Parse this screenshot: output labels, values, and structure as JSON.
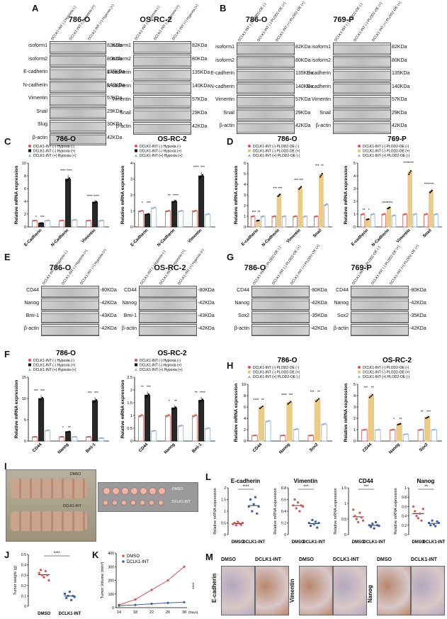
{
  "panels": {
    "A": {
      "label": "A",
      "cells": [
        "786-O",
        "OS-RC-2"
      ],
      "lanes": [
        "DCLK1-INT (-) Hypoxia (-)",
        "DCLK1-INT (-) Hypoxia (+)",
        "DCLK1-INT (+) Hypoxia (+)"
      ],
      "rows_left": [
        {
          "name": "isoform1",
          "kda": "82KDa"
        },
        {
          "name": "isoform2",
          "kda": "80KDa"
        },
        {
          "name": "E-cadherin",
          "kda": "135KDa"
        },
        {
          "name": "N-cadherin",
          "kda": "140KDa"
        },
        {
          "name": "Vimentin",
          "kda": "57KDa"
        },
        {
          "name": "Snail",
          "kda": "29KDa"
        },
        {
          "name": "Slug",
          "kda": "30KDa"
        },
        {
          "name": "β-actin",
          "kda": "42KDa"
        }
      ],
      "rows_right": [
        {
          "name": "isoform1",
          "kda": "82KDa"
        },
        {
          "name": "isoform2",
          "kda": "80KDa"
        },
        {
          "name": "E-cadherin",
          "kda": "135KDa"
        },
        {
          "name": "N-cadherin",
          "kda": "140KDa"
        },
        {
          "name": "Vimentin",
          "kda": "57KDa"
        },
        {
          "name": "Snail",
          "kda": "29KDa"
        },
        {
          "name": "β-actin",
          "kda": "42KDa"
        }
      ]
    },
    "B": {
      "label": "B",
      "cells": [
        "786-O",
        "769-P"
      ],
      "lanes": [
        "DCLK1-INT (-) PLOD2-OE (-)",
        "DCLK1-INT (-) PLOD2-OE (+)",
        "DCLK1-INT (+) PLOD2-OE (+)"
      ],
      "rows": [
        {
          "name": "isoform1",
          "kda": "82KDa"
        },
        {
          "name": "isoform2",
          "kda": "80KDa"
        },
        {
          "name": "E-cadherin",
          "kda": "135KDa"
        },
        {
          "name": "N-cadherin",
          "kda": "140KDa"
        },
        {
          "name": "Vimentin",
          "kda": "57KDa"
        },
        {
          "name": "Snail",
          "kda": "29KDa"
        },
        {
          "name": "β-actin",
          "kda": "42KDa"
        }
      ]
    },
    "C": {
      "label": "C"
    },
    "D": {
      "label": "D"
    },
    "E": {
      "label": "E",
      "cells": [
        "786-O",
        "OS-RC-2"
      ],
      "lanes": [
        "DCLK1-INT (-) Hypoxia (-)",
        "DCLK1-INT (-) Hypoxia (+)",
        "DCLK1-INT (+) Hypoxia (+)"
      ],
      "rows": [
        {
          "name": "CD44",
          "kda": "-80KDa"
        },
        {
          "name": "Nanog",
          "kda": "-42KDa"
        },
        {
          "name": "Bmi-1",
          "kda": "-43KDa"
        },
        {
          "name": "β-actin",
          "kda": "-42KDa"
        }
      ]
    },
    "G": {
      "label": "G",
      "cells": [
        "786-O",
        "769-P"
      ],
      "lanes": [
        "DCLK1-INT (-) PLOD2-OE (-)",
        "DCLK1-INT (-) PLOD2-OE (+)",
        "DCLK1-INT (+) PLOD2-OE (+)"
      ],
      "rows": [
        {
          "name": "CD44",
          "kda": "-80KDa"
        },
        {
          "name": "Nanog",
          "kda": "-42KDa"
        },
        {
          "name": "Sox2",
          "kda": "-35KDa"
        },
        {
          "name": "β-actin",
          "kda": "-42KDa"
        }
      ]
    },
    "F": {
      "label": "F"
    },
    "H": {
      "label": "H"
    },
    "I": {
      "label": "I",
      "tags": [
        "DMSO",
        "DCLK1-INT",
        "DMSO",
        "DCLK1-INT"
      ]
    },
    "L": {
      "label": "L"
    },
    "J": {
      "label": "J"
    },
    "K": {
      "label": "K"
    },
    "M": {
      "label": "M",
      "headers": [
        "DMSO",
        "DCLK1-INT"
      ],
      "markers": [
        "E-cadherin",
        "Vimentin",
        "Nanog"
      ]
    }
  },
  "chart_data": [
    {
      "id": "C1",
      "type": "bar",
      "title": "786-O",
      "ylabel": "Relative mRNA expression",
      "ylim": [
        0,
        10
      ],
      "yticks": [
        0,
        2,
        4,
        6,
        8,
        10
      ],
      "categories": [
        "E-Cadherin",
        "N-Cadherin",
        "Vimentin"
      ],
      "legend": [
        "DCLK1-INT (-) Hypoxia (-)",
        "DCLK1-INT (-) Hypoxia (+)",
        "DCLK1-INT (+) Hypoxia (+)"
      ],
      "series": [
        {
          "name": "DCLK1-INT (-) Hypoxia (-)",
          "values": [
            1.0,
            1.0,
            1.0
          ]
        },
        {
          "name": "DCLK1-INT (-) Hypoxia (+)",
          "values": [
            0.6,
            7.5,
            3.9
          ]
        },
        {
          "name": "DCLK1-INT (+) Hypoxia (+)",
          "values": [
            1.0,
            1.1,
            1.0
          ]
        }
      ],
      "sig": [
        "*",
        "***",
        "****",
        "****",
        "****",
        "****"
      ]
    },
    {
      "id": "C2",
      "type": "bar",
      "title": "OS-RC-2",
      "ylabel": "Relative mRNA expression",
      "ylim": [
        0,
        4
      ],
      "yticks": [
        0,
        1,
        2,
        3,
        4
      ],
      "categories": [
        "E-Cadherin",
        "N-Cadherin",
        "Vimentin"
      ],
      "legend": [
        "DCLK1-INT (-) Hypoxia (-)",
        "DCLK1-INT (-) Hypoxia (+)",
        "DCLK1-INT (+) Hypoxia (+)"
      ],
      "series": [
        {
          "name": "DCLK1-INT (-) Hypoxia (-)",
          "values": [
            1.0,
            1.0,
            1.0
          ]
        },
        {
          "name": "DCLK1-INT (-) Hypoxia (+)",
          "values": [
            0.8,
            1.6,
            3.2
          ]
        },
        {
          "name": "DCLK1-INT (+) Hypoxia (+)",
          "values": [
            1.2,
            1.0,
            0.8
          ]
        }
      ],
      "sig": [
        "*",
        "***",
        "**",
        "****",
        "****",
        "***"
      ]
    },
    {
      "id": "D1",
      "type": "bar",
      "title": "786-O",
      "ylabel": "Relative mRNA expression",
      "ylim": [
        0,
        6
      ],
      "yticks": [
        0,
        1,
        2,
        3,
        4,
        5,
        6
      ],
      "categories": [
        "E-cadherin",
        "N-Cadherin",
        "Vimentin",
        "Snail"
      ],
      "legend": [
        "DCLK1-INT (-) PLOD2-OE (-)",
        "DCLK1-INT (-) PLOD2-OE (+)",
        "DCLK1-INT (+) PLOD2-OE (-)"
      ],
      "series": [
        {
          "name": "DCLK1-INT (-) PLOD2-OE (-)",
          "values": [
            1.0,
            1.0,
            1.0,
            1.0
          ]
        },
        {
          "name": "DCLK1-INT (-) PLOD2-OE (+)",
          "values": [
            0.6,
            3.0,
            3.7,
            4.9
          ]
        },
        {
          "name": "DCLK1-INT (+) PLOD2-OE (-)",
          "values": [
            1.0,
            1.0,
            1.0,
            2.1
          ]
        }
      ],
      "sig": [
        "***",
        "**",
        "***",
        "***",
        "***",
        "***",
        "***",
        "**"
      ]
    },
    {
      "id": "D2",
      "type": "bar",
      "title": "769-P",
      "ylabel": "Relative mRNA expression",
      "ylim": [
        0,
        5
      ],
      "yticks": [
        0,
        1,
        2,
        3,
        4,
        5
      ],
      "categories": [
        "E-cadherin",
        "N-Cadherin",
        "Vimentin",
        "Snail"
      ],
      "legend": [
        "DCLK1-INT (-) PLOD2-OE (-)",
        "DCLK1-INT (-) PLOD2-OE (+)",
        "DCLK1-INT (+) PLOD2-OE (-)"
      ],
      "series": [
        {
          "name": "DCLK1-INT (-) PLOD2-OE (-)",
          "values": [
            1.0,
            1.0,
            1.0,
            1.0
          ]
        },
        {
          "name": "DCLK1-INT (-) PLOD2-OE (+)",
          "values": [
            0.6,
            1.5,
            4.3,
            2.8
          ]
        },
        {
          "name": "DCLK1-INT (+) PLOD2-OE (-)",
          "values": [
            1.0,
            0.9,
            1.0,
            1.0
          ]
        }
      ],
      "sig": [
        "**",
        "*",
        "****",
        "****",
        "****",
        "****",
        "****",
        "***"
      ]
    },
    {
      "id": "F1",
      "type": "bar",
      "title": "786-O",
      "ylabel": "Relative mRNA expression",
      "ylim": [
        0,
        15
      ],
      "yticks": [
        0,
        5,
        10,
        15
      ],
      "categories": [
        "CD44",
        "Nanog",
        "Bmi-1"
      ],
      "legend": [
        "DCLK1-INT (-) Hypoxia (-)",
        "DCLK1-INT (-) Hypoxia (+)",
        "DCLK1-INT (+) Hypoxia (+)"
      ],
      "series": [
        {
          "name": "DCLK1-INT (-) Hypoxia (-)",
          "values": [
            1.0,
            1.0,
            1.0
          ]
        },
        {
          "name": "DCLK1-INT (-) Hypoxia (+)",
          "values": [
            10.0,
            2.2,
            9.5
          ]
        },
        {
          "name": "DCLK1-INT (+) Hypoxia (+)",
          "values": [
            2.5,
            1.0,
            0.7
          ]
        }
      ],
      "sig": [
        "***",
        "***",
        "*",
        "**",
        "***",
        "***"
      ]
    },
    {
      "id": "F2",
      "type": "bar",
      "title": "OS-RC-2",
      "ylabel": "Relative mRNA expression",
      "ylim": [
        0,
        2.5
      ],
      "yticks": [
        0.0,
        0.5,
        1.0,
        1.5,
        2.0,
        2.5
      ],
      "categories": [
        "CD44",
        "Nanog",
        "Bmi-1"
      ],
      "legend": [
        "DCLK1-INT (-) Hypoxia (-)",
        "DCLK1-INT (-) Hypoxia (+)",
        "DCLK1-INT (+) Hypoxia (+)"
      ],
      "series": [
        {
          "name": "DCLK1-INT (-) Hypoxia (-)",
          "values": [
            1.0,
            1.0,
            1.0
          ]
        },
        {
          "name": "DCLK1-INT (-) Hypoxia (+)",
          "values": [
            1.8,
            1.3,
            1.6
          ]
        },
        {
          "name": "DCLK1-INT (+) Hypoxia (+)",
          "values": [
            0.4,
            0.6,
            0.5
          ]
        }
      ],
      "sig": [
        "**",
        "***",
        "*",
        "**",
        "**",
        "****"
      ]
    },
    {
      "id": "H1",
      "type": "bar",
      "title": "786-O",
      "ylabel": "Relative mRNA expression",
      "ylim": [
        0,
        10
      ],
      "yticks": [
        0,
        2,
        4,
        6,
        8,
        10
      ],
      "categories": [
        "CD44",
        "Nanog",
        "Sox2"
      ],
      "legend": [
        "DCLK1-INT (-) PLOD2-OE (-)",
        "DCLK1-INT (-) PLOD2-OE (+)",
        "DCLK1-INT (+) PLOD2-OE (-)"
      ],
      "series": [
        {
          "name": "DCLK1-INT (-) PLOD2-OE (-)",
          "values": [
            1.0,
            1.0,
            1.0
          ]
        },
        {
          "name": "DCLK1-INT (-) PLOD2-OE (+)",
          "values": [
            6.0,
            6.8,
            7.3
          ]
        },
        {
          "name": "DCLK1-INT (+) PLOD2-OE (-)",
          "values": [
            3.5,
            2.1,
            3.0
          ]
        }
      ],
      "sig": [
        "****",
        "**",
        "****",
        "***",
        "***",
        "**"
      ]
    },
    {
      "id": "H2",
      "type": "bar",
      "title": "OS-RC-2",
      "ylabel": "Relative mRNA expression",
      "ylim": [
        0,
        5
      ],
      "yticks": [
        0,
        1,
        2,
        3,
        4,
        5
      ],
      "categories": [
        "CD44",
        "Nanog",
        "Sox2"
      ],
      "legend": [
        "DCLK1-INT (-) PLOD2-OE (-)",
        "DCLK1-INT (-) PLOD2-OE (+)",
        "DCLK1-INT (+) PLOD2-OE (-)"
      ],
      "series": [
        {
          "name": "DCLK1-INT (-) PLOD2-OE (-)",
          "values": [
            1.0,
            1.0,
            1.0
          ]
        },
        {
          "name": "DCLK1-INT (-) PLOD2-OE (+)",
          "values": [
            4.0,
            1.5,
            2.1
          ]
        },
        {
          "name": "DCLK1-INT (+) PLOD2-OE (-)",
          "values": [
            1.0,
            0.6,
            1.0
          ]
        }
      ],
      "sig": [
        "***",
        "**",
        "*",
        "**",
        "**",
        "***"
      ]
    },
    {
      "id": "L1",
      "type": "scatter",
      "title": "E-cadherin",
      "ylabel": "Relative mRNA expression",
      "ylim": [
        0,
        2.0
      ],
      "yticks": [
        0.0,
        0.5,
        1.0,
        1.5,
        2.0
      ],
      "categories": [
        "DMSO",
        "DCLK1-INT"
      ],
      "sig": "****",
      "groups": [
        [
          0.45,
          0.5,
          0.4,
          0.55,
          0.48,
          0.42,
          0.5
        ],
        [
          1.2,
          1.5,
          1.0,
          1.3,
          1.6,
          0.9,
          1.2
        ]
      ]
    },
    {
      "id": "L2",
      "type": "scatter",
      "title": "Vimentin",
      "ylabel": "Relative mRNA expression",
      "ylim": [
        0,
        0.8
      ],
      "yticks": [
        0.0,
        0.2,
        0.4,
        0.6,
        0.8
      ],
      "categories": [
        "DMSO",
        "DCLK1-INT"
      ],
      "sig": "***",
      "groups": [
        [
          0.5,
          0.6,
          0.45,
          0.55,
          0.4,
          0.5,
          0.48
        ],
        [
          0.2,
          0.15,
          0.25,
          0.18,
          0.22,
          0.12,
          0.2
        ]
      ]
    },
    {
      "id": "L3",
      "type": "scatter",
      "title": "CD44",
      "ylabel": "Relative mRNA expression",
      "ylim": [
        0,
        1.5
      ],
      "yticks": [
        0.0,
        0.5,
        1.0,
        1.5
      ],
      "categories": [
        "DMSO",
        "DCLK1-INT"
      ],
      "sig": "***",
      "groups": [
        [
          0.8,
          0.6,
          0.5,
          0.4,
          0.7,
          0.55,
          0.45
        ],
        [
          0.3,
          0.25,
          0.35,
          0.2,
          0.4,
          0.3,
          0.28
        ]
      ]
    },
    {
      "id": "L4",
      "type": "scatter",
      "title": "Nanog",
      "ylabel": "Relative mRNA expression",
      "ylim": [
        0,
        1.0
      ],
      "yticks": [
        0.0,
        0.2,
        0.4,
        0.6,
        0.8,
        1.0
      ],
      "categories": [
        "DMSO",
        "DCLK1-INT"
      ],
      "sig": "**",
      "groups": [
        [
          0.6,
          0.5,
          0.4,
          0.35,
          0.45,
          0.3,
          0.55
        ],
        [
          0.25,
          0.2,
          0.3,
          0.22,
          0.18,
          0.28,
          0.25
        ]
      ]
    },
    {
      "id": "J",
      "type": "scatter",
      "title": "",
      "ylabel": "Tumor weight (g)",
      "ylim": [
        0,
        0.5
      ],
      "yticks": [
        0.0,
        0.1,
        0.2,
        0.3,
        0.4,
        0.5
      ],
      "categories": [
        "DMSO",
        "DCLK1-INT"
      ],
      "sig": "****",
      "groups": [
        [
          0.32,
          0.35,
          0.3,
          0.28,
          0.34,
          0.3,
          0.25
        ],
        [
          0.12,
          0.08,
          0.1,
          0.14,
          0.06,
          0.1,
          0.09
        ]
      ]
    },
    {
      "id": "K",
      "type": "line",
      "ylabel": "Tumor Volume (mm³)",
      "xlabel": "(Days)",
      "ylim": [
        0,
        400
      ],
      "yticks": [
        0,
        100,
        200,
        300,
        400
      ],
      "x": [
        14,
        18,
        22,
        26,
        30
      ],
      "sig": "****",
      "series": [
        {
          "name": "DMSO",
          "values": [
            20,
            60,
            130,
            200,
            300
          ]
        },
        {
          "name": "DCLK1-INT",
          "values": [
            15,
            20,
            28,
            35,
            40
          ]
        }
      ]
    }
  ],
  "colors": {
    "ctrl": "#d9534f",
    "hyp": "#111111",
    "int": "#8fb0d8",
    "oe": "#e8c77a"
  }
}
